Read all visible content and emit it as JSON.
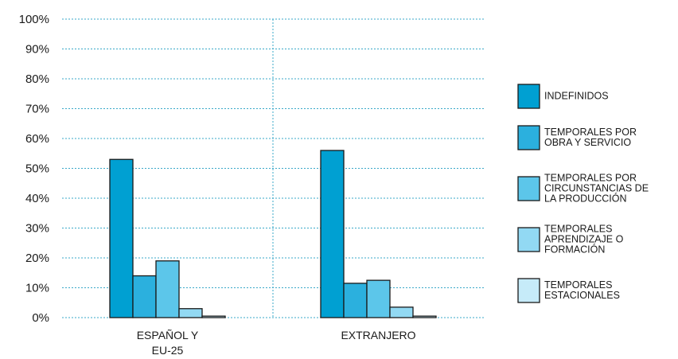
{
  "chart_data": {
    "type": "bar",
    "categories": [
      [
        "ESPAÑOL Y",
        "EU-25"
      ],
      [
        "EXTRANJERO"
      ]
    ],
    "series": [
      {
        "name": [
          "INDEFINIDOS"
        ],
        "color": "#00a0d2",
        "values": [
          53,
          56
        ]
      },
      {
        "name": [
          "TEMPORALES POR",
          "OBRA Y SERVICIO"
        ],
        "color": "#2bb0de",
        "values": [
          14,
          11.5
        ]
      },
      {
        "name": [
          "TEMPORALES POR",
          "CIRCUNSTANCIAS DE",
          "LA PRODUCCIÓN"
        ],
        "color": "#5cc6ea",
        "values": [
          19,
          12.5
        ]
      },
      {
        "name": [
          "TEMPORALES",
          "APRENDIZAJE O",
          "FORMACIÓN"
        ],
        "color": "#92d9f3",
        "values": [
          3,
          3.5
        ]
      },
      {
        "name": [
          "TEMPORALES",
          "ESTACIONALES"
        ],
        "color": "#c6ebf9",
        "values": [
          0.5,
          0.5
        ]
      }
    ],
    "yticks": [
      "0%",
      "10%",
      "20%",
      "30%",
      "40%",
      "50%",
      "60%",
      "70%",
      "80%",
      "90%",
      "100%"
    ],
    "ylim": [
      0,
      100
    ],
    "grid": true,
    "grid_color": "#3aa9c9",
    "legend_position": "right"
  }
}
